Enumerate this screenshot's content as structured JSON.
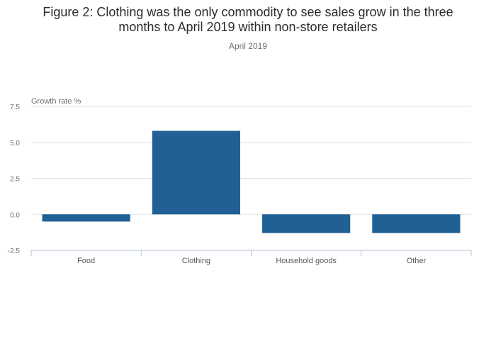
{
  "header": {
    "title_line1": "Figure 2: Clothing was the only commodity to see sales grow in the three",
    "title_line2": "months to April 2019 within non-store retailers",
    "subtitle": "April 2019"
  },
  "colors": {
    "bar": "#206095",
    "grid": "#e2e2e3",
    "axis": "#b5c3d9",
    "tick_text": "#707071",
    "category_text": "#595959"
  },
  "chart_data": {
    "type": "bar",
    "title": "Figure 2: Clothing was the only commodity to see sales grow in the three months to April 2019 within non-store retailers",
    "subtitle": "April 2019",
    "ylabel": "Growth rate %",
    "xlabel": "",
    "categories": [
      "Food",
      "Clothing",
      "Household goods",
      "Other"
    ],
    "values": [
      -0.5,
      5.8,
      -1.3,
      -1.3
    ],
    "ylim": [
      -2.5,
      7.5
    ],
    "yticks": [
      -2.5,
      0,
      2.5,
      5,
      7.5
    ],
    "ytick_labels": [
      "-2.5",
      "0.0",
      "2.5",
      "5.0",
      "7.5"
    ],
    "grid": true,
    "legend": "none"
  }
}
